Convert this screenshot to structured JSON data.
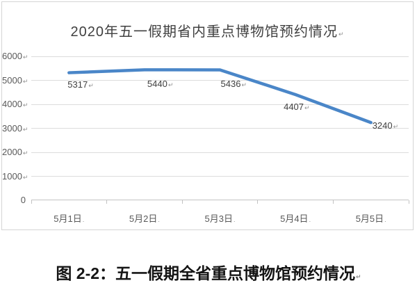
{
  "chart_data": {
    "type": "line",
    "title": "2020年五一假期省内重点博物馆预约情况",
    "categories": [
      "5月1日",
      "5月2日",
      "5月3日",
      "5月4日",
      "5月5日"
    ],
    "values": [
      5317,
      5440,
      5436,
      4407,
      3240
    ],
    "data_labels": [
      "5317",
      "5440",
      "5436",
      "4407",
      "3240"
    ],
    "xlabel": "",
    "ylabel": "",
    "ylim": [
      0,
      6000
    ],
    "yticks": [
      0,
      1000,
      2000,
      3000,
      4000,
      5000,
      6000
    ],
    "grid": true,
    "legend": "none",
    "line_color": "#4a86c8"
  },
  "figure": {
    "caption": "图 2-2：五一假期全省重点博物馆预约情况"
  },
  "marks": {
    "paragraph_mark": "↵",
    "date_mark": "."
  },
  "colors": {
    "gridline": "#dcdcdc",
    "axis": "#c2c2c2",
    "axis_text": "#595959",
    "title_text": "#404040",
    "data_label_text": "#404040",
    "caption_text": "#141414",
    "panel_border": "#d4d4d4"
  }
}
